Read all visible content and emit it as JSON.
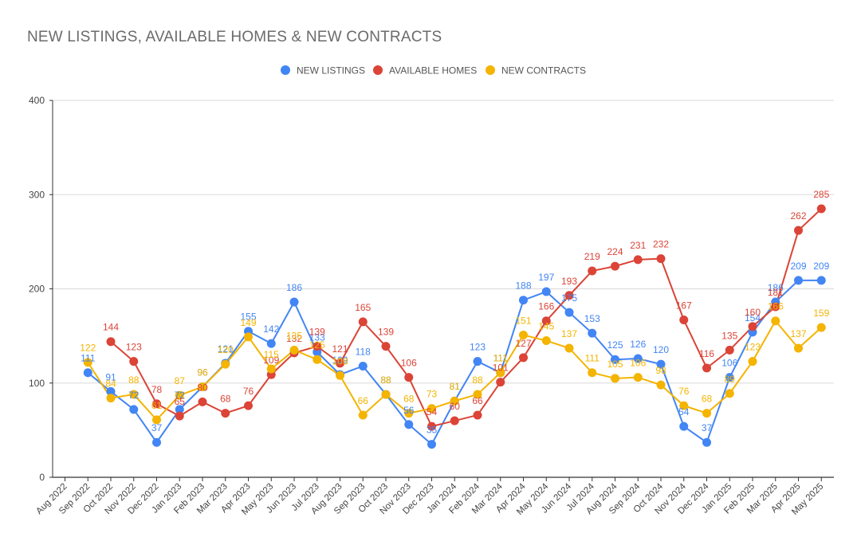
{
  "chart_data": {
    "type": "line",
    "title": "NEW LISTINGS, AVAILABLE HOMES & NEW CONTRACTS",
    "xlabel": "",
    "ylabel": "",
    "ylim": [
      0,
      400
    ],
    "yticks": [
      0,
      100,
      200,
      300,
      400
    ],
    "grid": true,
    "legend_position": "top",
    "categories": [
      "Aug 2022",
      "Sep 2022",
      "Oct 2022",
      "Nov 2022",
      "Dec 2022",
      "Jan 2023",
      "Feb 2023",
      "Mar 2023",
      "Apr 2023",
      "May 2023",
      "Jun 2023",
      "Jul 2023",
      "Aug 2023",
      "Sep 2023",
      "Oct 2023",
      "Nov 2023",
      "Dec 2023",
      "Jan 2024",
      "Feb 2024",
      "Mar 2024",
      "Apr 2024",
      "May 2024",
      "Jun 2024",
      "Jul 2024",
      "Aug 2024",
      "Sep 2024",
      "Oct 2024",
      "Nov 2024",
      "Dec 2024",
      "Jan 2025",
      "Feb 2025",
      "Mar 2025",
      "Apr 2025",
      "May 2025"
    ],
    "series": [
      {
        "name": "NEW LISTINGS",
        "color": "#4285f4",
        "values": [
          null,
          111,
          91,
          72,
          37,
          72,
          96,
          121,
          155,
          142,
          186,
          133,
          109,
          118,
          88,
          56,
          35,
          81,
          123,
          111,
          188,
          197,
          175,
          153,
          125,
          126,
          120,
          54,
          37,
          106,
          154,
          186,
          209,
          209
        ]
      },
      {
        "name": "AVAILABLE HOMES",
        "color": "#db4437",
        "values": [
          null,
          null,
          144,
          123,
          78,
          65,
          80,
          68,
          76,
          109,
          132,
          139,
          121,
          165,
          139,
          106,
          54,
          60,
          66,
          101,
          127,
          166,
          193,
          219,
          224,
          231,
          232,
          167,
          116,
          135,
          160,
          181,
          262,
          285
        ]
      },
      {
        "name": "NEW CONTRACTS",
        "color": "#f4b400",
        "values": [
          null,
          122,
          84,
          88,
          61,
          87,
          96,
          120,
          149,
          115,
          135,
          125,
          108,
          66,
          88,
          68,
          73,
          81,
          88,
          111,
          151,
          145,
          137,
          111,
          105,
          106,
          98,
          76,
          68,
          89,
          123,
          166,
          137,
          159
        ]
      }
    ]
  }
}
